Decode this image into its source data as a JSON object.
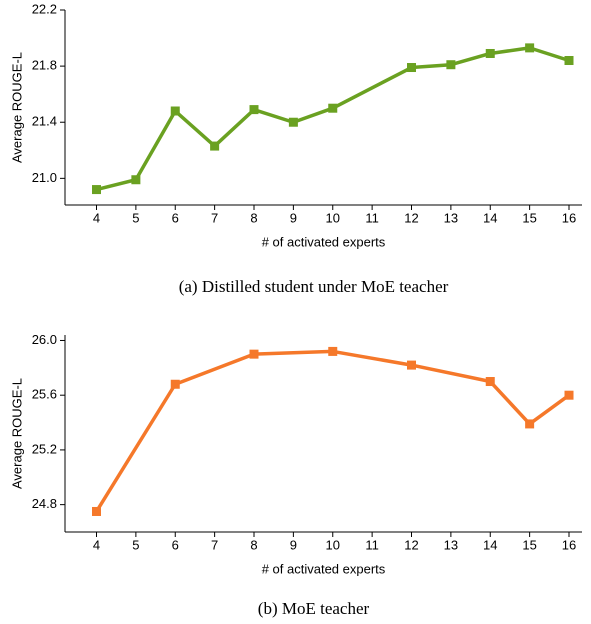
{
  "chart_data": [
    {
      "type": "line",
      "caption": "(a) Distilled student under MoE teacher",
      "xlabel": "# of activated experts",
      "ylabel": "Average ROUGE-L",
      "x": [
        4,
        5,
        6,
        7,
        8,
        9,
        10,
        12,
        13,
        14,
        15,
        16
      ],
      "series": [
        {
          "color": "#6aa121",
          "values": [
            20.92,
            20.99,
            21.48,
            21.23,
            21.49,
            21.4,
            21.5,
            21.79,
            21.81,
            21.89,
            21.93,
            21.84
          ]
        }
      ],
      "xlim": [
        3.2,
        16.33
      ],
      "xticks": [
        4,
        5,
        6,
        7,
        8,
        9,
        10,
        11,
        12,
        13,
        14,
        15,
        16
      ],
      "ylim": [
        20.81,
        22.2
      ],
      "yticks": [
        {
          "value": 21,
          "label": "21.0"
        },
        21.4,
        21.8,
        22.2
      ]
    },
    {
      "type": "line",
      "caption": "(b) MoE teacher",
      "xlabel": "# of activated experts",
      "ylabel": "Average ROUGE-L",
      "x": [
        4,
        6,
        8,
        10,
        12,
        14,
        15,
        16
      ],
      "series": [
        {
          "color": "#f5782a",
          "values": [
            24.75,
            25.68,
            25.9,
            25.92,
            25.82,
            25.7,
            25.39,
            25.6
          ]
        }
      ],
      "xlim": [
        3.2,
        16.33
      ],
      "xticks": [
        4,
        5,
        6,
        7,
        8,
        9,
        10,
        11,
        12,
        13,
        14,
        15,
        16
      ],
      "ylim": [
        24.6,
        26.04
      ],
      "yticks": [
        24.8,
        25.2,
        25.6,
        {
          "value": 26,
          "label": "26.0"
        }
      ]
    }
  ]
}
